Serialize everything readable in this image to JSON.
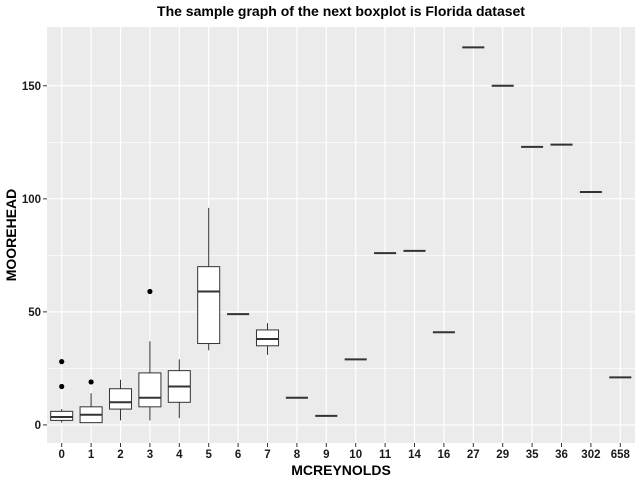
{
  "chart_data": {
    "type": "boxplot",
    "title": "The sample graph of the next boxplot is Florida dataset",
    "xlabel": "MCREYNOLDS",
    "ylabel": "MOOREHEAD",
    "ylim": [
      -8,
      176
    ],
    "yticks": [
      0,
      50,
      100,
      150
    ],
    "grid": true,
    "background": "#ebebeb",
    "gridline_color": "#ffffff",
    "box_fill": "#ffffff",
    "line_color": "#333333",
    "outlier_color": "#000000",
    "categories": [
      "0",
      "1",
      "2",
      "3",
      "4",
      "5",
      "6",
      "7",
      "8",
      "9",
      "10",
      "11",
      "14",
      "16",
      "27",
      "29",
      "35",
      "36",
      "302",
      "658"
    ],
    "boxes": [
      {
        "category": "0",
        "min": 1,
        "q1": 2,
        "median": 3.5,
        "q3": 6,
        "max": 7,
        "outliers": [
          17,
          28
        ]
      },
      {
        "category": "1",
        "min": 1,
        "q1": 1,
        "median": 4.5,
        "q3": 8,
        "max": 14,
        "outliers": [
          19
        ]
      },
      {
        "category": "2",
        "min": 2,
        "q1": 7,
        "median": 10,
        "q3": 16,
        "max": 20,
        "outliers": []
      },
      {
        "category": "3",
        "min": 2,
        "q1": 8,
        "median": 12,
        "q3": 23,
        "max": 37,
        "outliers": [
          59
        ]
      },
      {
        "category": "4",
        "min": 3,
        "q1": 10,
        "median": 17,
        "q3": 24,
        "max": 29,
        "outliers": []
      },
      {
        "category": "5",
        "min": 33,
        "q1": 36,
        "median": 59,
        "q3": 70,
        "max": 96,
        "outliers": []
      },
      {
        "category": "6",
        "min": 49,
        "q1": 49,
        "median": 49,
        "q3": 49,
        "max": 49,
        "outliers": []
      },
      {
        "category": "7",
        "min": 31,
        "q1": 35,
        "median": 38,
        "q3": 42,
        "max": 45,
        "outliers": []
      },
      {
        "category": "8",
        "min": 12,
        "q1": 12,
        "median": 12,
        "q3": 12,
        "max": 12,
        "outliers": []
      },
      {
        "category": "9",
        "min": 4,
        "q1": 4,
        "median": 4,
        "q3": 4,
        "max": 4,
        "outliers": []
      },
      {
        "category": "10",
        "min": 29,
        "q1": 29,
        "median": 29,
        "q3": 29,
        "max": 29,
        "outliers": []
      },
      {
        "category": "11",
        "min": 76,
        "q1": 76,
        "median": 76,
        "q3": 76,
        "max": 76,
        "outliers": []
      },
      {
        "category": "14",
        "min": 77,
        "q1": 77,
        "median": 77,
        "q3": 77,
        "max": 77,
        "outliers": []
      },
      {
        "category": "16",
        "min": 41,
        "q1": 41,
        "median": 41,
        "q3": 41,
        "max": 41,
        "outliers": []
      },
      {
        "category": "27",
        "min": 167,
        "q1": 167,
        "median": 167,
        "q3": 167,
        "max": 167,
        "outliers": []
      },
      {
        "category": "29",
        "min": 150,
        "q1": 150,
        "median": 150,
        "q3": 150,
        "max": 150,
        "outliers": []
      },
      {
        "category": "35",
        "min": 123,
        "q1": 123,
        "median": 123,
        "q3": 123,
        "max": 123,
        "outliers": []
      },
      {
        "category": "36",
        "min": 124,
        "q1": 124,
        "median": 124,
        "q3": 124,
        "max": 124,
        "outliers": []
      },
      {
        "category": "302",
        "min": 103,
        "q1": 103,
        "median": 103,
        "q3": 103,
        "max": 103,
        "outliers": []
      },
      {
        "category": "658",
        "min": 21,
        "q1": 21,
        "median": 21,
        "q3": 21,
        "max": 21,
        "outliers": []
      }
    ]
  }
}
